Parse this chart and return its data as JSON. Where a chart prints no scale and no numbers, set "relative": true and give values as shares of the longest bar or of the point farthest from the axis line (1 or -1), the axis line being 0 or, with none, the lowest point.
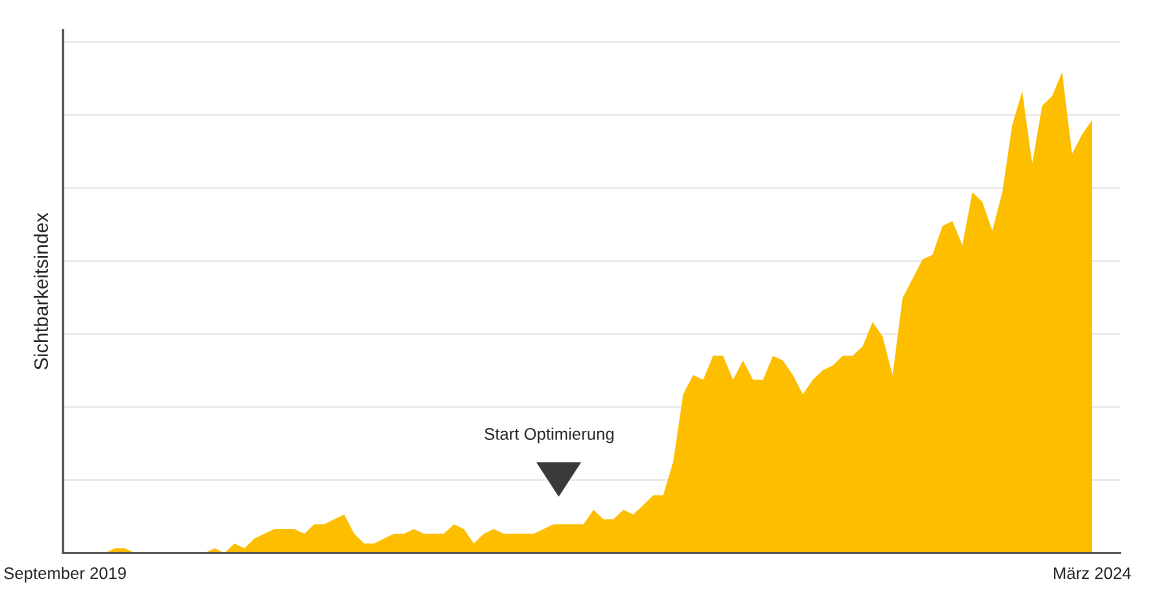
{
  "chart_data": {
    "type": "area",
    "relative": true,
    "ylabel": "Sichtbarkeitsindex",
    "grid": "y",
    "annotations": [
      "Start Optimierung"
    ],
    "categories": [
      "September 2019",
      null,
      null,
      null,
      null,
      null,
      null,
      null,
      null,
      null,
      null,
      null,
      null,
      null,
      null,
      null,
      null,
      null,
      null,
      null,
      null,
      null,
      null,
      null,
      null,
      null,
      null,
      null,
      null,
      null,
      null,
      null,
      null,
      null,
      null,
      null,
      null,
      null,
      null,
      null,
      null,
      null,
      null,
      null,
      null,
      null,
      null,
      null,
      null,
      null,
      null,
      null,
      null,
      null,
      null,
      null,
      null,
      null,
      null,
      null,
      null,
      null,
      null,
      null,
      null,
      null,
      null,
      null,
      null,
      null,
      null,
      null,
      null,
      null,
      null,
      null,
      null,
      null,
      null,
      null,
      null,
      null,
      null,
      null,
      null,
      null,
      null,
      null,
      null,
      null,
      null,
      null,
      null,
      null,
      null,
      null,
      null,
      null,
      null,
      null,
      null,
      null,
      null,
      "März 2024"
    ],
    "series": [
      {
        "color": "#fdbe00",
        "values": [
          0,
          0,
          0,
          0,
          0,
          0.01,
          0.01,
          0,
          0,
          0,
          0,
          0,
          0,
          0,
          0,
          0.01,
          0,
          0.02,
          0.01,
          0.03,
          0.04,
          0.05,
          0.05,
          0.05,
          0.04,
          0.06,
          0.06,
          0.07,
          0.08,
          0.04,
          0.02,
          0.02,
          0.03,
          0.04,
          0.04,
          0.05,
          0.04,
          0.04,
          0.04,
          0.06,
          0.05,
          0.02,
          0.04,
          0.05,
          0.04,
          0.04,
          0.04,
          0.04,
          0.05,
          0.06,
          0.06,
          0.06,
          0.06,
          0.09,
          0.07,
          0.07,
          0.09,
          0.08,
          0.1,
          0.12,
          0.12,
          0.19,
          0.33,
          0.37,
          0.36,
          0.41,
          0.41,
          0.36,
          0.4,
          0.36,
          0.36,
          0.41,
          0.4,
          0.37,
          0.33,
          0.36,
          0.38,
          0.39,
          0.41,
          0.41,
          0.43,
          0.48,
          0.45,
          0.37,
          0.53,
          0.57,
          0.61,
          0.62,
          0.68,
          0.69,
          0.64,
          0.75,
          0.73,
          0.67,
          0.75,
          0.89,
          0.96,
          0.81,
          0.93,
          0.95,
          1.0,
          0.83,
          0.87,
          0.9
        ]
      }
    ]
  }
}
